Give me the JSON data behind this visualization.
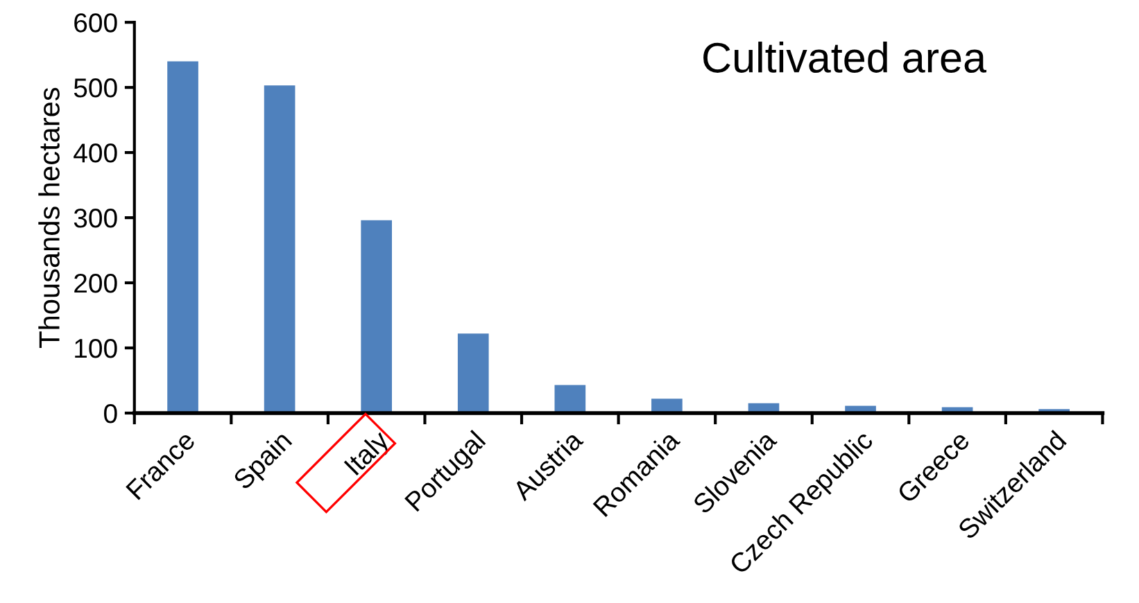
{
  "chart_data": {
    "type": "bar",
    "title": "Cultivated area",
    "ylabel": "Thousands hectares",
    "categories": [
      "France",
      "Spain",
      "Italy",
      "Portugal",
      "Austria",
      "Romania",
      "Slovenia",
      "Czech Republic",
      "Greece",
      "Switzerland"
    ],
    "values": [
      540,
      503,
      296,
      122,
      43,
      22,
      15,
      11,
      9,
      6
    ],
    "color": "#4f81bd",
    "ylim": [
      0,
      600
    ],
    "yticks": [
      0,
      100,
      200,
      300,
      400,
      500,
      600
    ],
    "grid": false
  }
}
